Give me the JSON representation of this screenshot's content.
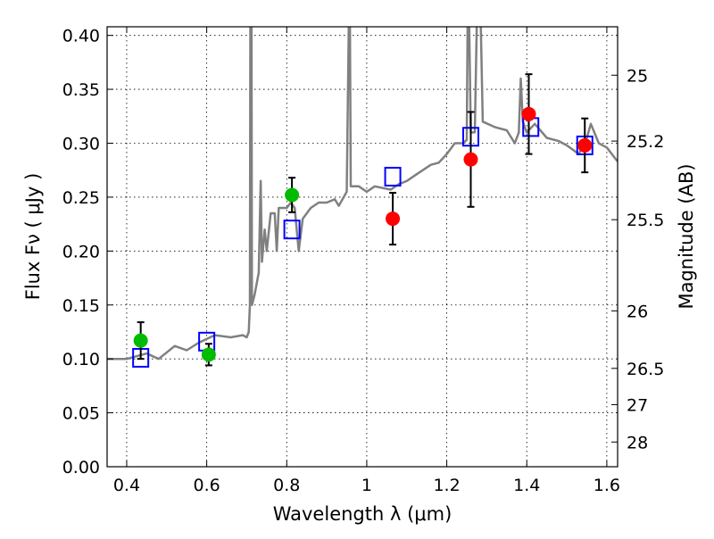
{
  "chart_data": {
    "type": "scatter",
    "xlabel": "Wavelength  λ (μm)",
    "ylabel": "Flux  Fν  ( μJy )",
    "ylabel_right": "Magnitude (AB)",
    "xlim": [
      0.351,
      1.627
    ],
    "ylim": [
      0.0,
      0.408
    ],
    "grid": true,
    "x_ticks": [
      0.4,
      0.6,
      0.8,
      1.0,
      1.2,
      1.4,
      1.6
    ],
    "x_tick_labels": [
      "0.4",
      "0.6",
      "0.8",
      "1",
      "1.2",
      "1.4",
      "1.6"
    ],
    "y_ticks": [
      0,
      0.05,
      0.1,
      0.15,
      0.2,
      0.25,
      0.3,
      0.35,
      0.4
    ],
    "y_tick_labels": [
      "0.00",
      "0.05",
      "0.10",
      "0.15",
      "0.20",
      "0.25",
      "0.30",
      "0.35",
      "0.40"
    ],
    "right_ticks": [
      25,
      25.2,
      25.5,
      26,
      26.5,
      27,
      28
    ],
    "right_tick_labels": [
      "25",
      "25.2",
      "25.5",
      "26",
      "26.5",
      "27",
      "28"
    ],
    "series": [
      {
        "name": "model spectrum",
        "kind": "line",
        "color": "#808080",
        "x": [
          0.351,
          0.4,
          0.45,
          0.48,
          0.52,
          0.55,
          0.58,
          0.62,
          0.66,
          0.69,
          0.7,
          0.705,
          0.708,
          0.709,
          0.712,
          0.713,
          0.72,
          0.73,
          0.735,
          0.738,
          0.745,
          0.75,
          0.76,
          0.77,
          0.775,
          0.78,
          0.8,
          0.81,
          0.82,
          0.83,
          0.84,
          0.86,
          0.88,
          0.9,
          0.92,
          0.93,
          0.95,
          0.955,
          0.958,
          0.96,
          0.98,
          1.0,
          1.02,
          1.06,
          1.08,
          1.1,
          1.12,
          1.14,
          1.16,
          1.18,
          1.2,
          1.22,
          1.24,
          1.25,
          1.252,
          1.256,
          1.26,
          1.27,
          1.275,
          1.285,
          1.29,
          1.32,
          1.35,
          1.37,
          1.38,
          1.385,
          1.39,
          1.4,
          1.42,
          1.45,
          1.48,
          1.5,
          1.53,
          1.55,
          1.56,
          1.58,
          1.6,
          1.627
        ],
        "y": [
          0.1,
          0.1,
          0.105,
          0.1,
          0.112,
          0.108,
          0.115,
          0.122,
          0.12,
          0.122,
          0.12,
          0.125,
          0.15,
          0.41,
          0.41,
          0.15,
          0.16,
          0.18,
          0.265,
          0.19,
          0.22,
          0.2,
          0.235,
          0.235,
          0.2,
          0.24,
          0.24,
          0.245,
          0.24,
          0.2,
          0.23,
          0.24,
          0.245,
          0.245,
          0.248,
          0.242,
          0.255,
          0.41,
          0.41,
          0.26,
          0.26,
          0.255,
          0.26,
          0.257,
          0.262,
          0.265,
          0.27,
          0.275,
          0.28,
          0.282,
          0.29,
          0.3,
          0.3,
          0.303,
          0.41,
          0.41,
          0.31,
          0.31,
          0.41,
          0.41,
          0.32,
          0.315,
          0.312,
          0.3,
          0.31,
          0.36,
          0.32,
          0.31,
          0.318,
          0.305,
          0.302,
          0.298,
          0.29,
          0.305,
          0.318,
          0.3,
          0.296,
          0.283
        ]
      },
      {
        "name": "model photometry",
        "kind": "open-square",
        "color": "#0000ff",
        "x": [
          0.435,
          0.6,
          0.813,
          1.065,
          1.26,
          1.41,
          1.545
        ],
        "y": [
          0.101,
          0.116,
          0.22,
          0.269,
          0.306,
          0.315,
          0.298
        ]
      },
      {
        "name": "observed (green)",
        "kind": "point-errorbar",
        "color": "#00bb00",
        "x": [
          0.435,
          0.605,
          0.813
        ],
        "y": [
          0.117,
          0.104,
          0.252
        ],
        "err": [
          0.017,
          0.01,
          0.016
        ]
      },
      {
        "name": "observed (red)",
        "kind": "point-errorbar",
        "color": "#ff0000",
        "x": [
          1.065,
          1.26,
          1.405,
          1.545
        ],
        "y": [
          0.23,
          0.285,
          0.327,
          0.298
        ],
        "err": [
          0.024,
          0.044,
          0.037,
          0.025
        ]
      }
    ]
  }
}
